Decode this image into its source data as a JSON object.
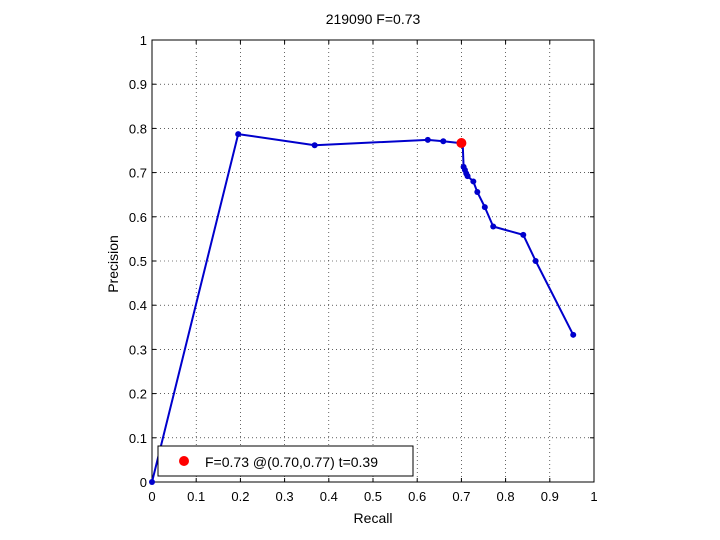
{
  "chart_data": {
    "type": "line",
    "title": "219090 F=0.73",
    "xlabel": "Recall",
    "ylabel": "Precision",
    "xlim": [
      0,
      1
    ],
    "ylim": [
      0,
      1
    ],
    "grid": true,
    "x_ticks": [
      "0",
      "0.1",
      "0.2",
      "0.3",
      "0.4",
      "0.5",
      "0.6",
      "0.7",
      "0.8",
      "0.9",
      "1"
    ],
    "y_ticks": [
      "0",
      "0.1",
      "0.2",
      "0.3",
      "0.4",
      "0.5",
      "0.6",
      "0.7",
      "0.8",
      "0.9",
      "1"
    ],
    "series": [
      {
        "color": "#0000cc",
        "points": [
          [
            0.0,
            0.0
          ],
          [
            0.195,
            0.787
          ],
          [
            0.368,
            0.762
          ],
          [
            0.624,
            0.774
          ],
          [
            0.659,
            0.771
          ],
          [
            0.703,
            0.766
          ],
          [
            0.705,
            0.713
          ],
          [
            0.708,
            0.706
          ],
          [
            0.711,
            0.698
          ],
          [
            0.714,
            0.692
          ],
          [
            0.727,
            0.68
          ],
          [
            0.736,
            0.656
          ],
          [
            0.753,
            0.622
          ],
          [
            0.772,
            0.578
          ],
          [
            0.84,
            0.559
          ],
          [
            0.868,
            0.5
          ],
          [
            0.953,
            0.333
          ]
        ]
      }
    ],
    "highlight": {
      "x": 0.7,
      "y": 0.767,
      "color": "#ff0000"
    },
    "legend": {
      "position": "bottom-left",
      "text": "F=0.73 @(0.70,0.77) t=0.39"
    }
  }
}
